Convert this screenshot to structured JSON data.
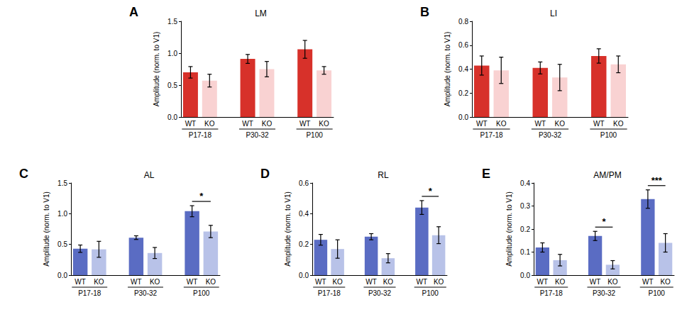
{
  "chart_data": [
    {
      "panel": "A",
      "type": "bar",
      "title": "LM",
      "y_label": "Amplitude (norm. to V1)",
      "categories": [
        "P17-18",
        "P30-32",
        "P100"
      ],
      "series": [
        {
          "name": "WT",
          "color": "#d7312a",
          "values": [
            0.7,
            0.91,
            1.06
          ],
          "errors": [
            0.09,
            0.07,
            0.14
          ]
        },
        {
          "name": "KO",
          "color": "#f9d2d2",
          "values": [
            0.57,
            0.75,
            0.73
          ],
          "errors": [
            0.1,
            0.12,
            0.06
          ]
        }
      ],
      "ylim": [
        0,
        1.5
      ],
      "yticks": [
        {
          "value": 0,
          "label": "0.0"
        },
        {
          "value": 0.5,
          "label": "0.5"
        },
        {
          "value": 1,
          "label": "1.0"
        },
        {
          "value": 1.5,
          "label": "1.5"
        }
      ],
      "annotations": []
    },
    {
      "panel": "B",
      "type": "bar",
      "title": "LI",
      "y_label": "Amplitude (norm. to V1)",
      "categories": [
        "P17-18",
        "P30-32",
        "P100"
      ],
      "series": [
        {
          "name": "WT",
          "color": "#d7312a",
          "values": [
            0.43,
            0.41,
            0.51
          ],
          "errors": [
            0.08,
            0.05,
            0.06
          ]
        },
        {
          "name": "KO",
          "color": "#f9d2d2",
          "values": [
            0.39,
            0.33,
            0.44
          ],
          "errors": [
            0.11,
            0.11,
            0.07
          ]
        }
      ],
      "ylim": [
        0,
        0.8
      ],
      "yticks": [
        {
          "value": 0,
          "label": "0.0"
        },
        0.2,
        0.4,
        0.6,
        0.8
      ],
      "annotations": []
    },
    {
      "panel": "C",
      "type": "bar",
      "title": "AL",
      "y_label": "Amplitude (norm. to V1)",
      "categories": [
        "P17-18",
        "P30-32",
        "P100"
      ],
      "series": [
        {
          "name": "WT",
          "color": "#5a6cc3",
          "values": [
            0.43,
            0.61,
            1.04
          ],
          "errors": [
            0.06,
            0.03,
            0.09
          ]
        },
        {
          "name": "KO",
          "color": "#b8c2e8",
          "values": [
            0.42,
            0.36,
            0.71
          ],
          "errors": [
            0.13,
            0.09,
            0.1
          ]
        }
      ],
      "ylim": [
        0,
        1.5
      ],
      "yticks": [
        {
          "value": 0,
          "label": "0.0"
        },
        {
          "value": 0.5,
          "label": "0.5"
        },
        {
          "value": 1,
          "label": "1.0"
        },
        {
          "value": 1.5,
          "label": "1.5"
        }
      ],
      "annotations": [
        {
          "category": "P100",
          "text": "*"
        }
      ]
    },
    {
      "panel": "D",
      "type": "bar",
      "title": "RL",
      "y_label": "Amplitude (norm. to V1)",
      "categories": [
        "P17-18",
        "P30-32",
        "P100"
      ],
      "series": [
        {
          "name": "WT",
          "color": "#5a6cc3",
          "values": [
            0.23,
            0.25,
            0.44
          ],
          "errors": [
            0.035,
            0.02,
            0.045
          ]
        },
        {
          "name": "KO",
          "color": "#b8c2e8",
          "values": [
            0.17,
            0.11,
            0.26
          ],
          "errors": [
            0.06,
            0.03,
            0.055
          ]
        }
      ],
      "ylim": [
        0,
        0.6
      ],
      "yticks": [
        {
          "value": 0,
          "label": "0.0"
        },
        0.2,
        0.4,
        0.6
      ],
      "annotations": [
        {
          "category": "P100",
          "text": "*"
        }
      ]
    },
    {
      "panel": "E",
      "type": "bar",
      "title": "AM/PM",
      "y_label": "Amplitude (norm. to V1)",
      "categories": [
        "P17-18",
        "P30-32",
        "P100"
      ],
      "series": [
        {
          "name": "WT",
          "color": "#5a6cc3",
          "values": [
            0.12,
            0.17,
            0.33
          ],
          "errors": [
            0.02,
            0.02,
            0.04
          ]
        },
        {
          "name": "KO",
          "color": "#b8c2e8",
          "values": [
            0.065,
            0.045,
            0.14
          ],
          "errors": [
            0.025,
            0.018,
            0.04
          ]
        }
      ],
      "ylim": [
        0,
        0.4
      ],
      "yticks": [
        {
          "value": 0,
          "label": "0.0"
        },
        0.1,
        0.2,
        0.3,
        0.4
      ],
      "annotations": [
        {
          "category": "P30-32",
          "text": "*"
        },
        {
          "category": "P100",
          "text": "***"
        }
      ]
    }
  ]
}
